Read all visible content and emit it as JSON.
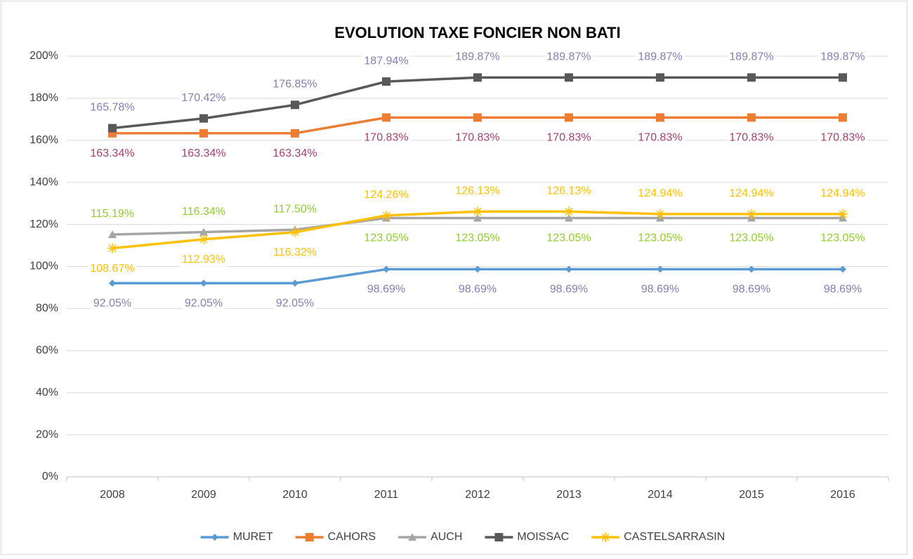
{
  "chart_data": {
    "type": "line",
    "title": "EVOLUTION TAXE FONCIER NON BATI",
    "categories": [
      "2008",
      "2009",
      "2010",
      "2011",
      "2012",
      "2013",
      "2014",
      "2015",
      "2016"
    ],
    "ylim": [
      0,
      200
    ],
    "yticks": [
      {
        "value": 0,
        "label": "0%"
      },
      {
        "value": 20,
        "label": "20%"
      },
      {
        "value": 40,
        "label": "40%"
      },
      {
        "value": 60,
        "label": "60%"
      },
      {
        "value": 80,
        "label": "80%"
      },
      {
        "value": 100,
        "label": "100%"
      },
      {
        "value": 120,
        "label": "120%"
      },
      {
        "value": 140,
        "label": "140%"
      },
      {
        "value": 160,
        "label": "160%"
      },
      {
        "value": 180,
        "label": "180%"
      },
      {
        "value": 200,
        "label": "200%"
      }
    ],
    "grid": true,
    "legend": "bottom",
    "series": [
      {
        "name": "MURET",
        "color": "#5b9bd5",
        "marker": "diamond",
        "label_color": "#7f80b4",
        "values": [
          92.05,
          92.05,
          92.05,
          98.69,
          98.69,
          98.69,
          98.69,
          98.69,
          98.69
        ],
        "value_labels": [
          "92.05%",
          "92.05%",
          "92.05%",
          "98.69%",
          "98.69%",
          "98.69%",
          "98.69%",
          "98.69%",
          "98.69%"
        ],
        "label_positions": [
          "below",
          "below",
          "below",
          "below",
          "below",
          "below",
          "below",
          "below",
          "below"
        ]
      },
      {
        "name": "CAHORS",
        "color": "#ed7d31",
        "marker": "square",
        "label_color": "#a4426c",
        "values": [
          163.34,
          163.34,
          163.34,
          170.83,
          170.83,
          170.83,
          170.83,
          170.83,
          170.83
        ],
        "value_labels": [
          "163.34%",
          "163.34%",
          "163.34%",
          "170.83%",
          "170.83%",
          "170.83%",
          "170.83%",
          "170.83%",
          "170.83%"
        ],
        "label_positions": [
          "below",
          "below",
          "below",
          "below",
          "below",
          "below",
          "below",
          "below",
          "below"
        ]
      },
      {
        "name": "AUCH",
        "color": "#a5a5a5",
        "marker": "triangle",
        "label_color": "#8fce2a",
        "values": [
          115.19,
          116.34,
          117.5,
          123.05,
          123.05,
          123.05,
          123.05,
          123.05,
          123.05
        ],
        "value_labels": [
          "115.19%",
          "116.34%",
          "117.50%",
          "123.05%",
          "123.05%",
          "123.05%",
          "123.05%",
          "123.05%",
          "123.05%"
        ],
        "label_positions": [
          "above",
          "above",
          "above",
          "below",
          "below",
          "below",
          "below",
          "below",
          "below"
        ]
      },
      {
        "name": "MOISSAC",
        "color": "#595959",
        "marker": "square",
        "label_color": "#7f80b4",
        "values": [
          165.78,
          170.42,
          176.85,
          187.94,
          189.87,
          189.87,
          189.87,
          189.87,
          189.87
        ],
        "value_labels": [
          "165.78%",
          "170.42%",
          "176.85%",
          "187.94%",
          "189.87%",
          "189.87%",
          "189.87%",
          "189.87%",
          "189.87%"
        ],
        "label_positions": [
          "above",
          "above",
          "above",
          "above",
          "above",
          "above",
          "above",
          "above",
          "above"
        ]
      },
      {
        "name": "CASTELSARRASIN",
        "color": "#ffc000",
        "marker": "star",
        "label_color": "#ffc000",
        "values": [
          108.67,
          112.93,
          116.32,
          124.26,
          126.13,
          126.13,
          124.94,
          124.94,
          124.94
        ],
        "value_labels": [
          "108.67%",
          "112.93%",
          "116.32%",
          "124.26%",
          "126.13%",
          "126.13%",
          "124.94%",
          "124.94%",
          "124.94%"
        ],
        "label_positions": [
          "below",
          "below",
          "below",
          "above",
          "above",
          "above",
          "above",
          "above",
          "above"
        ]
      }
    ]
  }
}
